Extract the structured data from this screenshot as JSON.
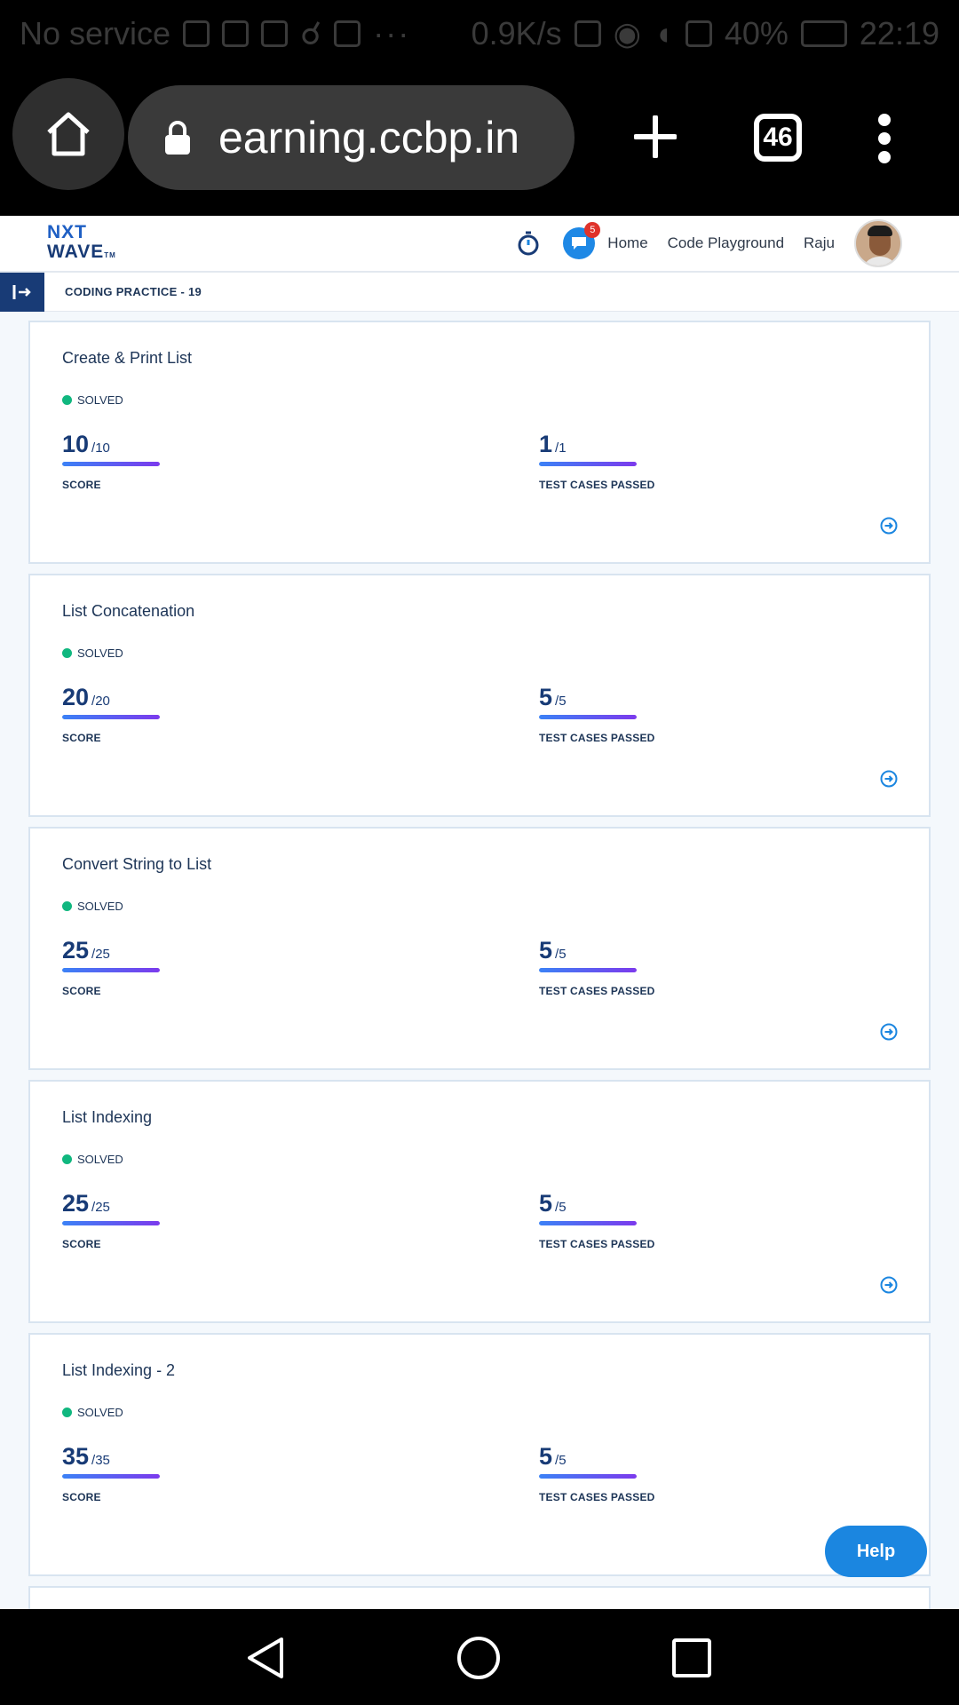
{
  "status_bar": {
    "carrier": "No service",
    "net_speed": "0.9K/s",
    "battery": "40%",
    "time": "22:19",
    "more": "···"
  },
  "browser": {
    "url": "earning.ccbp.in",
    "tab_count": "46"
  },
  "nav": {
    "logo_line1": "NXT",
    "logo_line2": "WAVE",
    "logo_tm": "TM",
    "chat_badge": "5",
    "home": "Home",
    "code_playground": "Code Playground",
    "user": "Raju"
  },
  "breadcrumb": "CODING PRACTICE - 19",
  "labels": {
    "score": "SCORE",
    "tests": "TEST CASES PASSED"
  },
  "cards": [
    {
      "title": "Create & Print List",
      "status": "SOLVED",
      "score": "10",
      "score_max": "/10",
      "tests": "1",
      "tests_max": "/1"
    },
    {
      "title": "List Concatenation",
      "status": "SOLVED",
      "score": "20",
      "score_max": "/20",
      "tests": "5",
      "tests_max": "/5"
    },
    {
      "title": "Convert String to List",
      "status": "SOLVED",
      "score": "25",
      "score_max": "/25",
      "tests": "5",
      "tests_max": "/5"
    },
    {
      "title": "List Indexing",
      "status": "SOLVED",
      "score": "25",
      "score_max": "/25",
      "tests": "5",
      "tests_max": "/5"
    },
    {
      "title": "List Indexing - 2",
      "status": "SOLVED",
      "score": "35",
      "score_max": "/35",
      "tests": "5",
      "tests_max": "/5"
    }
  ],
  "help_label": "Help",
  "colors": {
    "brand_navy": "#183b76",
    "accent_blue": "#1b86e0",
    "solved_green": "#10b77f"
  }
}
